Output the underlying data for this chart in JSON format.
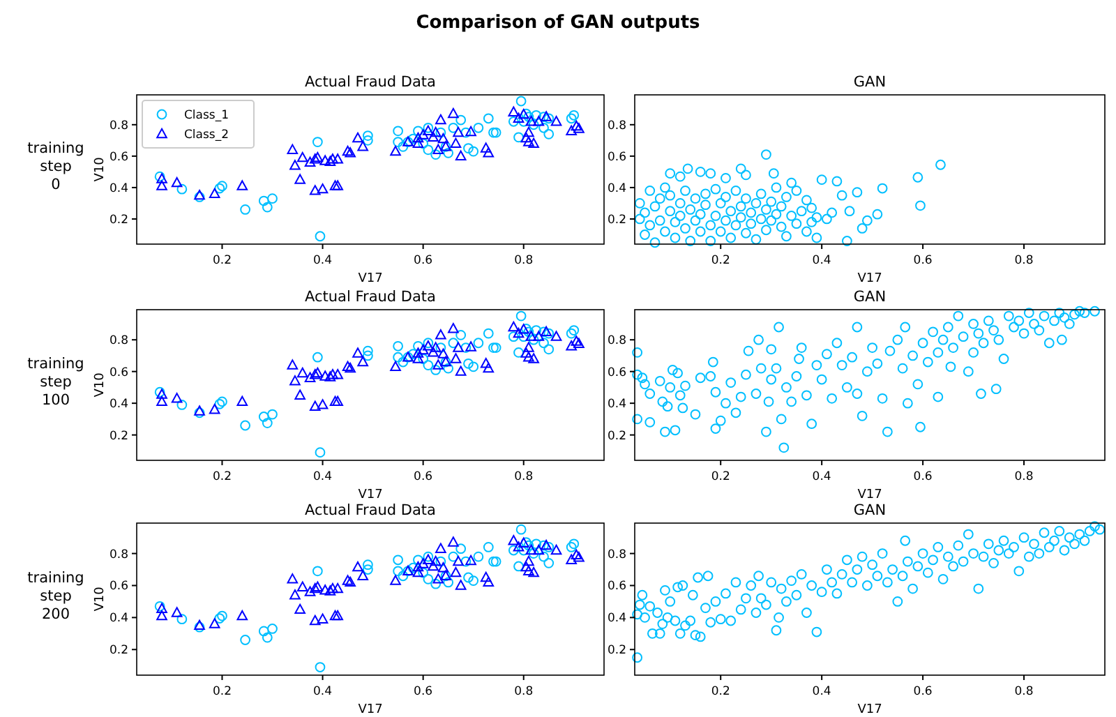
{
  "chart_data": [
    {
      "type": "scatter",
      "title": "Actual Fraud Data",
      "xlabel": "V17",
      "ylabel": "V10",
      "annotations": [
        "Comparison of GAN outputs",
        "training step 0"
      ],
      "xlim": [
        0.03,
        0.96
      ],
      "ylim": [
        0.04,
        0.99
      ],
      "xticks": [
        0.2,
        0.4,
        0.6,
        0.8
      ],
      "yticks": [
        0.2,
        0.4,
        0.6,
        0.8
      ],
      "legend": "top left",
      "grid": false,
      "series": [
        {
          "name": "Class_1",
          "color": "#00bfff",
          "marker": "circle",
          "x": [
            0.076,
            0.12,
            0.155,
            0.195,
            0.2,
            0.246,
            0.283,
            0.29,
            0.3,
            0.39,
            0.395,
            0.49,
            0.49,
            0.55,
            0.55,
            0.56,
            0.57,
            0.58,
            0.59,
            0.6,
            0.61,
            0.61,
            0.625,
            0.635,
            0.645,
            0.65,
            0.66,
            0.675,
            0.685,
            0.69,
            0.7,
            0.71,
            0.73,
            0.74,
            0.745,
            0.78,
            0.79,
            0.795,
            0.8,
            0.805,
            0.82,
            0.84,
            0.84,
            0.85,
            0.85,
            0.895,
            0.9,
            0.81,
            0.825
          ],
          "values": [
            0.47,
            0.39,
            0.34,
            0.395,
            0.41,
            0.26,
            0.315,
            0.275,
            0.33,
            0.69,
            0.09,
            0.73,
            0.7,
            0.76,
            0.69,
            0.66,
            0.69,
            0.71,
            0.76,
            0.68,
            0.64,
            0.78,
            0.61,
            0.75,
            0.66,
            0.62,
            0.78,
            0.83,
            0.75,
            0.65,
            0.63,
            0.78,
            0.84,
            0.75,
            0.75,
            0.82,
            0.72,
            0.95,
            0.82,
            0.87,
            0.8,
            0.85,
            0.78,
            0.74,
            0.84,
            0.84,
            0.86,
            0.85,
            0.86
          ]
        },
        {
          "name": "Class_2",
          "color": "#0000ff",
          "marker": "triangle",
          "x": [
            0.08,
            0.08,
            0.11,
            0.155,
            0.185,
            0.24,
            0.34,
            0.345,
            0.355,
            0.36,
            0.375,
            0.385,
            0.385,
            0.39,
            0.4,
            0.405,
            0.415,
            0.42,
            0.425,
            0.43,
            0.43,
            0.45,
            0.455,
            0.47,
            0.48,
            0.545,
            0.57,
            0.59,
            0.59,
            0.6,
            0.61,
            0.62,
            0.625,
            0.63,
            0.635,
            0.64,
            0.645,
            0.66,
            0.665,
            0.67,
            0.675,
            0.695,
            0.725,
            0.73,
            0.78,
            0.79,
            0.8,
            0.805,
            0.81,
            0.81,
            0.815,
            0.82,
            0.83,
            0.845,
            0.865,
            0.895,
            0.905,
            0.91
          ],
          "values": [
            0.455,
            0.41,
            0.43,
            0.35,
            0.36,
            0.41,
            0.64,
            0.54,
            0.45,
            0.59,
            0.56,
            0.58,
            0.38,
            0.59,
            0.39,
            0.57,
            0.565,
            0.58,
            0.41,
            0.41,
            0.58,
            0.63,
            0.62,
            0.715,
            0.66,
            0.63,
            0.69,
            0.68,
            0.715,
            0.735,
            0.76,
            0.72,
            0.75,
            0.64,
            0.83,
            0.71,
            0.66,
            0.87,
            0.68,
            0.75,
            0.6,
            0.755,
            0.65,
            0.62,
            0.88,
            0.84,
            0.865,
            0.715,
            0.69,
            0.75,
            0.82,
            0.68,
            0.82,
            0.85,
            0.82,
            0.76,
            0.79,
            0.775
          ]
        }
      ]
    },
    {
      "type": "scatter",
      "title": "GAN",
      "xlabel": "V17",
      "xlim": [
        0.03,
        0.96
      ],
      "ylim": [
        0.04,
        0.99
      ],
      "xticks": [
        0.2,
        0.4,
        0.6,
        0.8
      ],
      "yticks": [
        0.2,
        0.4,
        0.6,
        0.8
      ],
      "grid": false,
      "series": [
        {
          "color": "#00bfff",
          "marker": "circle",
          "x": [
            0.635,
            0.59,
            0.595,
            0.52,
            0.51,
            0.49,
            0.48,
            0.47,
            0.45,
            0.455,
            0.44,
            0.43,
            0.42,
            0.4,
            0.41,
            0.39,
            0.38,
            0.29,
            0.305,
            0.135,
            0.16,
            0.18,
            0.21,
            0.24,
            0.25,
            0.1,
            0.12,
            0.34,
            0.04,
            0.04,
            0.05,
            0.05,
            0.06,
            0.06,
            0.07,
            0.07,
            0.08,
            0.08,
            0.09,
            0.09,
            0.1,
            0.1,
            0.11,
            0.11,
            0.12,
            0.12,
            0.13,
            0.13,
            0.14,
            0.14,
            0.15,
            0.15,
            0.16,
            0.16,
            0.17,
            0.17,
            0.18,
            0.18,
            0.19,
            0.19,
            0.2,
            0.2,
            0.21,
            0.21,
            0.22,
            0.22,
            0.23,
            0.23,
            0.24,
            0.24,
            0.25,
            0.25,
            0.26,
            0.26,
            0.27,
            0.27,
            0.28,
            0.28,
            0.29,
            0.29,
            0.3,
            0.3,
            0.31,
            0.31,
            0.32,
            0.32,
            0.33,
            0.33,
            0.34,
            0.35,
            0.35,
            0.36,
            0.37,
            0.37,
            0.38,
            0.39
          ],
          "values": [
            0.545,
            0.465,
            0.285,
            0.395,
            0.23,
            0.19,
            0.14,
            0.37,
            0.06,
            0.25,
            0.35,
            0.44,
            0.24,
            0.45,
            0.2,
            0.08,
            0.18,
            0.61,
            0.49,
            0.52,
            0.5,
            0.49,
            0.46,
            0.52,
            0.48,
            0.49,
            0.47,
            0.43,
            0.3,
            0.2,
            0.1,
            0.24,
            0.38,
            0.16,
            0.28,
            0.05,
            0.33,
            0.19,
            0.4,
            0.12,
            0.25,
            0.35,
            0.18,
            0.08,
            0.3,
            0.22,
            0.38,
            0.14,
            0.26,
            0.06,
            0.33,
            0.19,
            0.23,
            0.12,
            0.36,
            0.29,
            0.16,
            0.06,
            0.22,
            0.39,
            0.3,
            0.12,
            0.19,
            0.34,
            0.25,
            0.08,
            0.16,
            0.38,
            0.28,
            0.21,
            0.11,
            0.33,
            0.24,
            0.17,
            0.3,
            0.07,
            0.2,
            0.36,
            0.26,
            0.13,
            0.31,
            0.19,
            0.23,
            0.4,
            0.15,
            0.28,
            0.09,
            0.34,
            0.22,
            0.38,
            0.17,
            0.25,
            0.12,
            0.32,
            0.27,
            0.21
          ]
        }
      ]
    },
    {
      "type": "scatter",
      "title": "Actual Fraud Data",
      "xlabel": "V17",
      "ylabel": "V10",
      "annotations": [
        "training step 100"
      ],
      "xlim": [
        0.03,
        0.96
      ],
      "ylim": [
        0.04,
        0.99
      ],
      "xticks": [
        0.2,
        0.4,
        0.6,
        0.8
      ],
      "yticks": [
        0.2,
        0.4,
        0.6,
        0.8
      ],
      "grid": false,
      "series": [
        {
          "color": "#00bfff",
          "marker": "circle",
          "x": [
            0.076,
            0.12,
            0.155,
            0.195,
            0.2,
            0.246,
            0.283,
            0.29,
            0.3,
            0.39,
            0.395,
            0.49,
            0.49,
            0.55,
            0.55,
            0.56,
            0.57,
            0.58,
            0.59,
            0.6,
            0.61,
            0.61,
            0.625,
            0.635,
            0.645,
            0.65,
            0.66,
            0.675,
            0.685,
            0.69,
            0.7,
            0.71,
            0.73,
            0.74,
            0.745,
            0.78,
            0.79,
            0.795,
            0.8,
            0.805,
            0.82,
            0.84,
            0.84,
            0.85,
            0.85,
            0.895,
            0.9,
            0.81,
            0.825
          ],
          "values": [
            0.47,
            0.39,
            0.34,
            0.395,
            0.41,
            0.26,
            0.315,
            0.275,
            0.33,
            0.69,
            0.09,
            0.73,
            0.7,
            0.76,
            0.69,
            0.66,
            0.69,
            0.71,
            0.76,
            0.68,
            0.64,
            0.78,
            0.61,
            0.75,
            0.66,
            0.62,
            0.78,
            0.83,
            0.75,
            0.65,
            0.63,
            0.78,
            0.84,
            0.75,
            0.75,
            0.82,
            0.72,
            0.95,
            0.82,
            0.87,
            0.8,
            0.85,
            0.78,
            0.74,
            0.84,
            0.84,
            0.86,
            0.85,
            0.86
          ]
        },
        {
          "color": "#0000ff",
          "marker": "triangle",
          "x": [
            0.08,
            0.08,
            0.11,
            0.155,
            0.185,
            0.24,
            0.34,
            0.345,
            0.355,
            0.36,
            0.375,
            0.385,
            0.385,
            0.39,
            0.4,
            0.405,
            0.415,
            0.42,
            0.425,
            0.43,
            0.43,
            0.45,
            0.455,
            0.47,
            0.48,
            0.545,
            0.57,
            0.59,
            0.59,
            0.6,
            0.61,
            0.62,
            0.625,
            0.63,
            0.635,
            0.64,
            0.645,
            0.66,
            0.665,
            0.67,
            0.675,
            0.695,
            0.725,
            0.73,
            0.78,
            0.79,
            0.8,
            0.805,
            0.81,
            0.81,
            0.815,
            0.82,
            0.83,
            0.845,
            0.865,
            0.895,
            0.905,
            0.91
          ],
          "values": [
            0.455,
            0.41,
            0.43,
            0.35,
            0.36,
            0.41,
            0.64,
            0.54,
            0.45,
            0.59,
            0.56,
            0.58,
            0.38,
            0.59,
            0.39,
            0.57,
            0.565,
            0.58,
            0.41,
            0.41,
            0.58,
            0.63,
            0.62,
            0.715,
            0.66,
            0.63,
            0.69,
            0.68,
            0.715,
            0.735,
            0.76,
            0.72,
            0.75,
            0.64,
            0.83,
            0.71,
            0.66,
            0.87,
            0.68,
            0.75,
            0.6,
            0.755,
            0.65,
            0.62,
            0.88,
            0.84,
            0.865,
            0.715,
            0.69,
            0.75,
            0.82,
            0.68,
            0.82,
            0.85,
            0.82,
            0.76,
            0.79,
            0.775
          ]
        }
      ]
    },
    {
      "type": "scatter",
      "title": "GAN",
      "xlabel": "V17",
      "xlim": [
        0.03,
        0.96
      ],
      "ylim": [
        0.04,
        0.99
      ],
      "xticks": [
        0.2,
        0.4,
        0.6,
        0.8
      ],
      "yticks": [
        0.2,
        0.4,
        0.6,
        0.8
      ],
      "grid": false,
      "series": [
        {
          "color": "#00bfff",
          "marker": "circle",
          "x": [
            0.035,
            0.035,
            0.035,
            0.045,
            0.05,
            0.06,
            0.06,
            0.08,
            0.085,
            0.09,
            0.095,
            0.1,
            0.105,
            0.11,
            0.115,
            0.12,
            0.125,
            0.13,
            0.15,
            0.16,
            0.18,
            0.185,
            0.19,
            0.19,
            0.2,
            0.21,
            0.22,
            0.23,
            0.24,
            0.25,
            0.255,
            0.27,
            0.275,
            0.28,
            0.29,
            0.295,
            0.3,
            0.3,
            0.31,
            0.315,
            0.32,
            0.325,
            0.33,
            0.34,
            0.35,
            0.355,
            0.36,
            0.37,
            0.38,
            0.39,
            0.4,
            0.41,
            0.42,
            0.43,
            0.44,
            0.45,
            0.46,
            0.47,
            0.47,
            0.48,
            0.49,
            0.5,
            0.51,
            0.52,
            0.53,
            0.535,
            0.55,
            0.56,
            0.565,
            0.57,
            0.58,
            0.59,
            0.595,
            0.6,
            0.61,
            0.62,
            0.63,
            0.63,
            0.64,
            0.65,
            0.655,
            0.66,
            0.67,
            0.68,
            0.69,
            0.7,
            0.7,
            0.71,
            0.715,
            0.72,
            0.73,
            0.74,
            0.745,
            0.75,
            0.76,
            0.77,
            0.78,
            0.79,
            0.8,
            0.81,
            0.82,
            0.83,
            0.84,
            0.85,
            0.86,
            0.87,
            0.875,
            0.88,
            0.89,
            0.9,
            0.91,
            0.92,
            0.94
          ],
          "values": [
            0.72,
            0.58,
            0.3,
            0.56,
            0.52,
            0.46,
            0.28,
            0.54,
            0.41,
            0.22,
            0.38,
            0.5,
            0.61,
            0.23,
            0.59,
            0.45,
            0.37,
            0.51,
            0.33,
            0.56,
            0.57,
            0.66,
            0.24,
            0.47,
            0.29,
            0.4,
            0.53,
            0.34,
            0.44,
            0.58,
            0.73,
            0.46,
            0.8,
            0.62,
            0.22,
            0.41,
            0.55,
            0.74,
            0.62,
            0.88,
            0.3,
            0.12,
            0.5,
            0.41,
            0.57,
            0.68,
            0.75,
            0.45,
            0.27,
            0.64,
            0.55,
            0.71,
            0.43,
            0.78,
            0.64,
            0.5,
            0.69,
            0.88,
            0.46,
            0.32,
            0.6,
            0.75,
            0.65,
            0.43,
            0.22,
            0.73,
            0.8,
            0.62,
            0.88,
            0.4,
            0.7,
            0.52,
            0.25,
            0.78,
            0.66,
            0.85,
            0.72,
            0.44,
            0.8,
            0.88,
            0.63,
            0.75,
            0.95,
            0.82,
            0.6,
            0.9,
            0.72,
            0.84,
            0.46,
            0.78,
            0.92,
            0.86,
            0.49,
            0.8,
            0.68,
            0.95,
            0.88,
            0.92,
            0.84,
            0.97,
            0.9,
            0.86,
            0.95,
            0.78,
            0.92,
            0.97,
            0.8,
            0.94,
            0.9,
            0.96,
            0.98,
            0.97,
            0.98
          ]
        }
      ]
    },
    {
      "type": "scatter",
      "title": "Actual Fraud Data",
      "xlabel": "V17",
      "ylabel": "V10",
      "annotations": [
        "training step 200"
      ],
      "xlim": [
        0.03,
        0.96
      ],
      "ylim": [
        0.04,
        0.99
      ],
      "xticks": [
        0.2,
        0.4,
        0.6,
        0.8
      ],
      "yticks": [
        0.2,
        0.4,
        0.6,
        0.8
      ],
      "grid": false,
      "series": [
        {
          "color": "#00bfff",
          "marker": "circle",
          "x": [
            0.076,
            0.12,
            0.155,
            0.195,
            0.2,
            0.246,
            0.283,
            0.29,
            0.3,
            0.39,
            0.395,
            0.49,
            0.49,
            0.55,
            0.55,
            0.56,
            0.57,
            0.58,
            0.59,
            0.6,
            0.61,
            0.61,
            0.625,
            0.635,
            0.645,
            0.65,
            0.66,
            0.675,
            0.685,
            0.69,
            0.7,
            0.71,
            0.73,
            0.74,
            0.745,
            0.78,
            0.79,
            0.795,
            0.8,
            0.805,
            0.82,
            0.84,
            0.84,
            0.85,
            0.85,
            0.895,
            0.9,
            0.81,
            0.825
          ],
          "values": [
            0.47,
            0.39,
            0.34,
            0.395,
            0.41,
            0.26,
            0.315,
            0.275,
            0.33,
            0.69,
            0.09,
            0.73,
            0.7,
            0.76,
            0.69,
            0.66,
            0.69,
            0.71,
            0.76,
            0.68,
            0.64,
            0.78,
            0.61,
            0.75,
            0.66,
            0.62,
            0.78,
            0.83,
            0.75,
            0.65,
            0.63,
            0.78,
            0.84,
            0.75,
            0.75,
            0.82,
            0.72,
            0.95,
            0.82,
            0.87,
            0.8,
            0.85,
            0.78,
            0.74,
            0.84,
            0.84,
            0.86,
            0.85,
            0.86
          ]
        },
        {
          "color": "#0000ff",
          "marker": "triangle",
          "x": [
            0.08,
            0.08,
            0.11,
            0.155,
            0.185,
            0.24,
            0.34,
            0.345,
            0.355,
            0.36,
            0.375,
            0.385,
            0.385,
            0.39,
            0.4,
            0.405,
            0.415,
            0.42,
            0.425,
            0.43,
            0.43,
            0.45,
            0.455,
            0.47,
            0.48,
            0.545,
            0.57,
            0.59,
            0.59,
            0.6,
            0.61,
            0.62,
            0.625,
            0.63,
            0.635,
            0.64,
            0.645,
            0.66,
            0.665,
            0.67,
            0.675,
            0.695,
            0.725,
            0.73,
            0.78,
            0.79,
            0.8,
            0.805,
            0.81,
            0.81,
            0.815,
            0.82,
            0.83,
            0.845,
            0.865,
            0.895,
            0.905,
            0.91
          ],
          "values": [
            0.455,
            0.41,
            0.43,
            0.35,
            0.36,
            0.41,
            0.64,
            0.54,
            0.45,
            0.59,
            0.56,
            0.58,
            0.38,
            0.59,
            0.39,
            0.57,
            0.565,
            0.58,
            0.41,
            0.41,
            0.58,
            0.63,
            0.62,
            0.715,
            0.66,
            0.63,
            0.69,
            0.68,
            0.715,
            0.735,
            0.76,
            0.72,
            0.75,
            0.64,
            0.83,
            0.71,
            0.66,
            0.87,
            0.68,
            0.75,
            0.6,
            0.755,
            0.65,
            0.62,
            0.88,
            0.84,
            0.865,
            0.715,
            0.69,
            0.75,
            0.82,
            0.68,
            0.82,
            0.85,
            0.82,
            0.76,
            0.79,
            0.775
          ]
        }
      ]
    },
    {
      "type": "scatter",
      "title": "GAN",
      "xlabel": "V17",
      "xlim": [
        0.03,
        0.96
      ],
      "ylim": [
        0.04,
        0.99
      ],
      "xticks": [
        0.2,
        0.4,
        0.6,
        0.8
      ],
      "yticks": [
        0.2,
        0.4,
        0.6,
        0.8
      ],
      "grid": false,
      "series": [
        {
          "color": "#00bfff",
          "marker": "circle",
          "x": [
            0.035,
            0.035,
            0.04,
            0.045,
            0.05,
            0.06,
            0.065,
            0.075,
            0.08,
            0.085,
            0.09,
            0.095,
            0.1,
            0.11,
            0.115,
            0.12,
            0.125,
            0.13,
            0.14,
            0.145,
            0.15,
            0.155,
            0.16,
            0.17,
            0.175,
            0.18,
            0.19,
            0.2,
            0.21,
            0.22,
            0.23,
            0.24,
            0.25,
            0.26,
            0.27,
            0.275,
            0.28,
            0.29,
            0.3,
            0.31,
            0.315,
            0.32,
            0.33,
            0.34,
            0.35,
            0.36,
            0.37,
            0.38,
            0.39,
            0.4,
            0.41,
            0.42,
            0.43,
            0.44,
            0.45,
            0.46,
            0.47,
            0.48,
            0.49,
            0.5,
            0.51,
            0.52,
            0.53,
            0.54,
            0.55,
            0.56,
            0.565,
            0.57,
            0.58,
            0.59,
            0.6,
            0.61,
            0.62,
            0.63,
            0.64,
            0.65,
            0.66,
            0.67,
            0.68,
            0.69,
            0.7,
            0.71,
            0.72,
            0.73,
            0.74,
            0.75,
            0.76,
            0.77,
            0.78,
            0.79,
            0.8,
            0.81,
            0.82,
            0.83,
            0.84,
            0.85,
            0.86,
            0.87,
            0.88,
            0.89,
            0.9,
            0.91,
            0.92,
            0.93,
            0.94,
            0.95
          ],
          "values": [
            0.42,
            0.15,
            0.48,
            0.54,
            0.4,
            0.47,
            0.3,
            0.43,
            0.3,
            0.36,
            0.57,
            0.4,
            0.5,
            0.38,
            0.59,
            0.3,
            0.6,
            0.35,
            0.38,
            0.54,
            0.29,
            0.65,
            0.28,
            0.46,
            0.66,
            0.37,
            0.5,
            0.39,
            0.55,
            0.38,
            0.62,
            0.45,
            0.52,
            0.6,
            0.43,
            0.66,
            0.52,
            0.48,
            0.62,
            0.32,
            0.4,
            0.58,
            0.5,
            0.63,
            0.54,
            0.67,
            0.43,
            0.6,
            0.31,
            0.56,
            0.7,
            0.62,
            0.55,
            0.67,
            0.76,
            0.62,
            0.7,
            0.78,
            0.6,
            0.73,
            0.66,
            0.8,
            0.62,
            0.7,
            0.5,
            0.66,
            0.88,
            0.75,
            0.58,
            0.72,
            0.8,
            0.68,
            0.76,
            0.84,
            0.64,
            0.78,
            0.72,
            0.85,
            0.75,
            0.92,
            0.8,
            0.58,
            0.78,
            0.86,
            0.74,
            0.82,
            0.88,
            0.8,
            0.84,
            0.69,
            0.9,
            0.78,
            0.86,
            0.8,
            0.93,
            0.84,
            0.88,
            0.94,
            0.82,
            0.9,
            0.86,
            0.92,
            0.88,
            0.94,
            0.97,
            0.95
          ]
        }
      ]
    }
  ]
}
